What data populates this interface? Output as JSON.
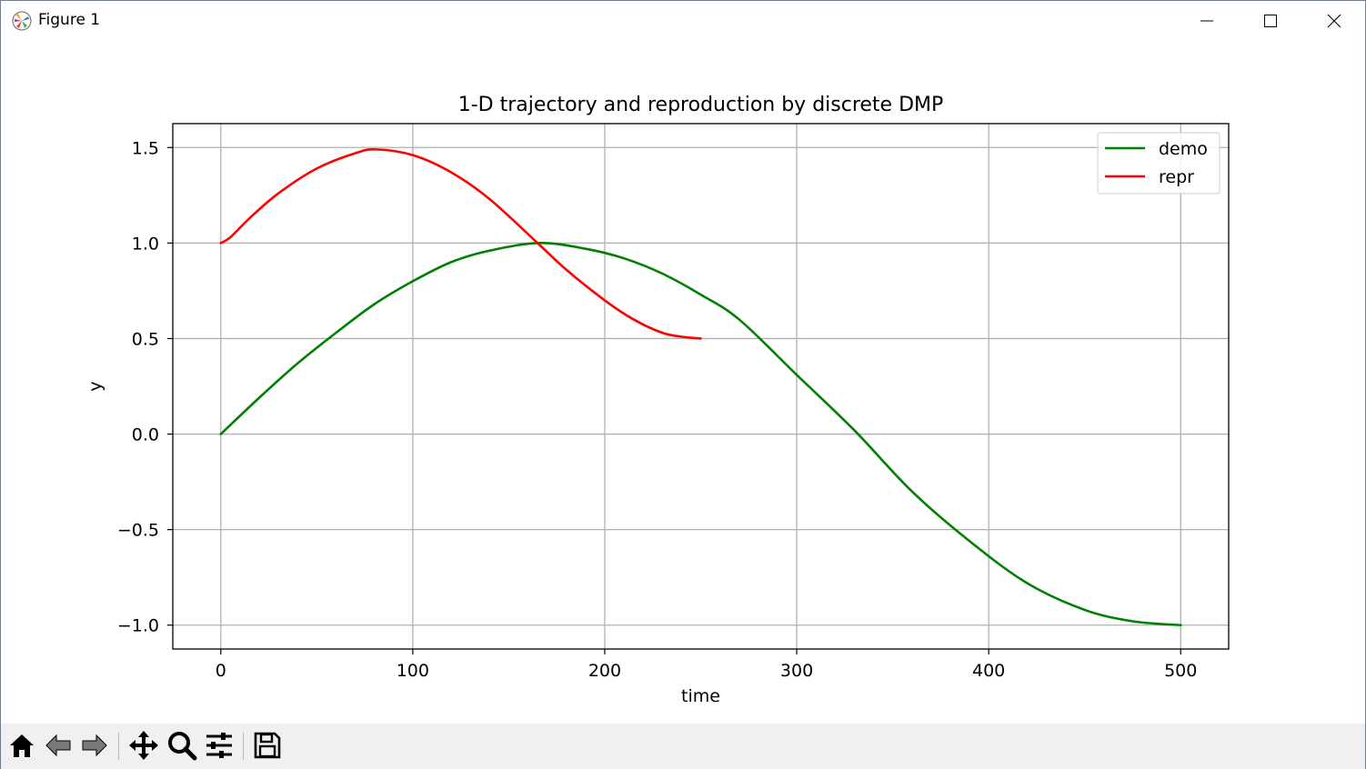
{
  "window": {
    "title": "Figure 1",
    "controls": [
      "minimize-icon",
      "maximize-icon",
      "close-icon"
    ]
  },
  "toolbar": {
    "buttons": [
      {
        "name": "home-icon",
        "label": "Home"
      },
      {
        "name": "back-icon",
        "label": "Back"
      },
      {
        "name": "forward-icon",
        "label": "Forward"
      },
      {
        "name": "pan-icon",
        "label": "Pan"
      },
      {
        "name": "zoom-icon",
        "label": "Zoom"
      },
      {
        "name": "configure-subplots-icon",
        "label": "Subplots"
      },
      {
        "name": "save-icon",
        "label": "Save"
      }
    ]
  },
  "chart_data": {
    "type": "line",
    "title": "1-D trajectory and reproduction by discrete DMP",
    "xlabel": "time",
    "ylabel": "y",
    "xlim": [
      -25,
      525
    ],
    "ylim": [
      -1.125,
      1.625
    ],
    "xticks": [
      0,
      100,
      200,
      300,
      400,
      500
    ],
    "xtick_labels": [
      "0",
      "100",
      "200",
      "300",
      "400",
      "500"
    ],
    "yticks": [
      1.5,
      1.0,
      0.5,
      0.0,
      -0.5,
      -1.0
    ],
    "ytick_labels": [
      "1.5",
      "1.0",
      "0.5",
      "0.0",
      "−0.5",
      "−1.0"
    ],
    "grid": true,
    "legend_position": "top-right",
    "series": [
      {
        "name": "demo",
        "color": "#008000",
        "x": [
          0,
          20,
          40,
          60,
          80,
          100,
          120,
          140,
          166,
          190,
          210,
          230,
          250,
          270,
          300,
          330,
          360,
          390,
          420,
          450,
          475,
          500
        ],
        "y": [
          0.0,
          0.19,
          0.37,
          0.53,
          0.68,
          0.8,
          0.9,
          0.96,
          1.0,
          0.97,
          0.92,
          0.84,
          0.73,
          0.6,
          0.31,
          0.02,
          -0.3,
          -0.56,
          -0.78,
          -0.92,
          -0.98,
          -1.0
        ]
      },
      {
        "name": "repr",
        "color": "#ff0000",
        "x": [
          0,
          5,
          15,
          30,
          50,
          70,
          81,
          100,
          120,
          140,
          165,
          180,
          200,
          215,
          230,
          240,
          250
        ],
        "y": [
          1.0,
          1.03,
          1.13,
          1.26,
          1.39,
          1.47,
          1.49,
          1.46,
          1.37,
          1.23,
          1.0,
          0.86,
          0.7,
          0.6,
          0.53,
          0.51,
          0.5
        ]
      }
    ]
  }
}
